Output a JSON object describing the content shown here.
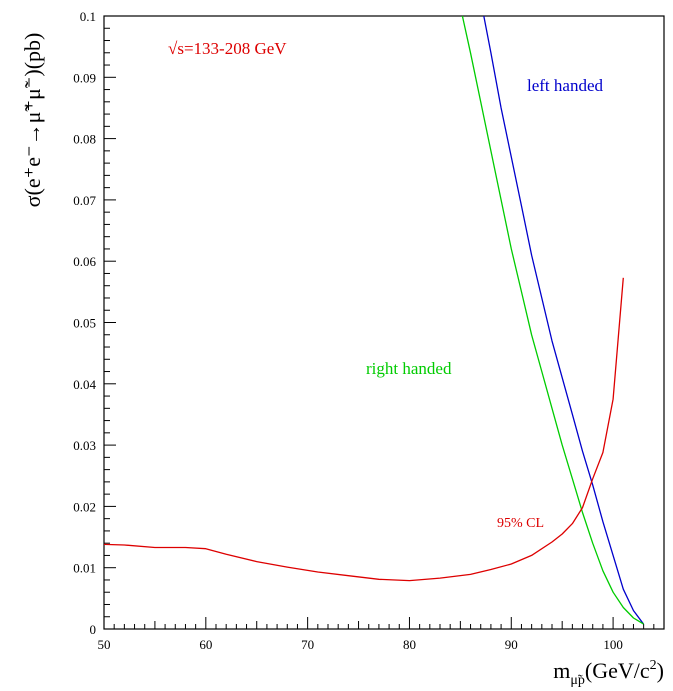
{
  "chart_data": {
    "type": "line",
    "xlabel_main": "m",
    "xlabel_sub": "μ̃p",
    "xlabel_unit": "(GeV/c",
    "xlabel_sup": "2",
    "xlabel_close": ")",
    "ylabel": "σ(e⁺e⁻→μ̃⁺μ̃⁻)(pb)",
    "xlim": [
      50,
      105
    ],
    "ylim": [
      0,
      0.1
    ],
    "x_ticks": [
      50,
      60,
      70,
      80,
      90,
      100
    ],
    "y_ticks": [
      0,
      0.01,
      0.02,
      0.03,
      0.04,
      0.05,
      0.06,
      0.07,
      0.08,
      0.09,
      0.1
    ],
    "y_tick_labels": [
      "0",
      "0.01",
      "0.02",
      "0.03",
      "0.04",
      "0.05",
      "0.06",
      "0.07",
      "0.08",
      "0.09",
      "0.1"
    ],
    "annotations": {
      "energy": "√s=133-208 GeV",
      "left": "left handed",
      "right": "right handed",
      "cl": "95% CL"
    },
    "series": [
      {
        "name": "left handed",
        "color": "#0000cc",
        "points": [
          [
            87.3,
            0.1
          ],
          [
            88,
            0.094
          ],
          [
            89,
            0.085
          ],
          [
            90,
            0.077
          ],
          [
            91,
            0.069
          ],
          [
            92,
            0.061
          ],
          [
            93,
            0.054
          ],
          [
            94,
            0.047
          ],
          [
            95,
            0.041
          ],
          [
            96,
            0.035
          ],
          [
            97,
            0.029
          ],
          [
            98,
            0.0235
          ],
          [
            99,
            0.0175
          ],
          [
            100,
            0.012
          ],
          [
            101,
            0.0065
          ],
          [
            102,
            0.003
          ],
          [
            103,
            0.0008
          ]
        ]
      },
      {
        "name": "right handed",
        "color": "#00cc00",
        "points": [
          [
            85.2,
            0.1
          ],
          [
            86,
            0.094
          ],
          [
            87,
            0.086
          ],
          [
            88,
            0.078
          ],
          [
            89,
            0.07
          ],
          [
            90,
            0.062
          ],
          [
            91,
            0.055
          ],
          [
            92,
            0.048
          ],
          [
            93,
            0.042
          ],
          [
            94,
            0.036
          ],
          [
            95,
            0.03
          ],
          [
            96,
            0.0245
          ],
          [
            97,
            0.019
          ],
          [
            98,
            0.014
          ],
          [
            99,
            0.0095
          ],
          [
            100,
            0.006
          ],
          [
            101,
            0.0035
          ],
          [
            102,
            0.0018
          ],
          [
            103,
            0.0008
          ]
        ]
      },
      {
        "name": "95% CL",
        "color": "#dd0000",
        "points": [
          [
            50,
            0.0138
          ],
          [
            52,
            0.0137
          ],
          [
            55,
            0.0133
          ],
          [
            58,
            0.0133
          ],
          [
            60,
            0.0131
          ],
          [
            62,
            0.0122
          ],
          [
            65,
            0.011
          ],
          [
            68,
            0.0101
          ],
          [
            71,
            0.0093
          ],
          [
            74,
            0.0087
          ],
          [
            77,
            0.0081
          ],
          [
            80,
            0.0079
          ],
          [
            83,
            0.0083
          ],
          [
            86,
            0.0089
          ],
          [
            88,
            0.0097
          ],
          [
            90,
            0.0106
          ],
          [
            92,
            0.012
          ],
          [
            94,
            0.0142
          ],
          [
            95,
            0.0155
          ],
          [
            96,
            0.0172
          ],
          [
            97,
            0.0198
          ],
          [
            98,
            0.0245
          ],
          [
            99,
            0.0288
          ],
          [
            100,
            0.0375
          ],
          [
            101,
            0.0573
          ]
        ]
      }
    ]
  }
}
